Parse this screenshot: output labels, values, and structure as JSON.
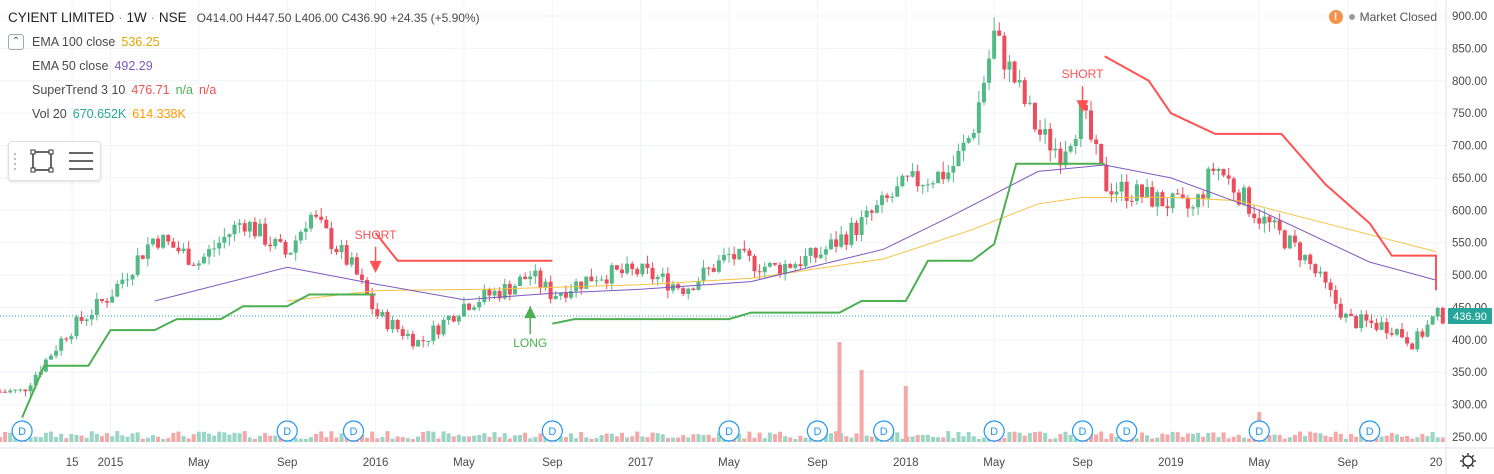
{
  "header": {
    "symbol": "CYIENT LIMITED",
    "sep1": "·",
    "interval": "1W",
    "sep2": "·",
    "exchange": "NSE",
    "ohlc": {
      "o_label": "O",
      "o": "414.00",
      "h_label": "H",
      "h": "447.50",
      "l_label": "L",
      "l": "406.00",
      "c_label": "C",
      "c": "436.90"
    },
    "change": "+24.35 (+5.90%)"
  },
  "indicators": [
    {
      "label": "EMA 100 close",
      "value": "536.25",
      "color": "#f6c342"
    },
    {
      "label": "EMA 50 close",
      "value": "492.29",
      "color": "#7e57c2"
    },
    {
      "label": "SuperTrend 3 10",
      "value": "476.71",
      "value2": "n/a",
      "value3": "n/a",
      "color": "#ef5350",
      "color2": "#4caf50",
      "color3": "#ef5350"
    },
    {
      "label": "Vol 20",
      "value": "670.652K",
      "value2": "614.338K",
      "color": "#26a69a",
      "color2": "#ff9800"
    }
  ],
  "market_status": "Market Closed",
  "icons": {
    "warning": "warning-icon",
    "settings": "gear-icon",
    "rect": "rectangle-tool-icon",
    "menu": "list-menu-icon"
  },
  "colors": {
    "up": "#53b987",
    "down": "#eb4d5c",
    "st_up": "#4caf50",
    "st_down": "#ff5252",
    "ema100": "#f6c342",
    "ema50": "#7e57c2",
    "vol_up": "#9bd6c4",
    "vol_down": "#f4a9a9",
    "grid": "#f0f3fa",
    "last_line": "#26a69a"
  },
  "chart_data": {
    "type": "candlestick",
    "ylim": [
      240,
      910
    ],
    "y_ticks": [
      "900.00",
      "850.00",
      "800.00",
      "750.00",
      "700.00",
      "650.00",
      "600.00",
      "550.00",
      "500.00",
      "450.00",
      "400.00",
      "350.00",
      "300.00",
      "250.00"
    ],
    "x_ticks": [
      "15",
      "2015",
      "May",
      "Sep",
      "2016",
      "May",
      "Sep",
      "2017",
      "May",
      "Sep",
      "2018",
      "May",
      "Sep",
      "2019",
      "May",
      "Sep",
      "20"
    ],
    "last_price_label": "436.90",
    "last_price": 436.9,
    "current_bar_price_label": "450.00",
    "annotations": [
      {
        "text": "SHORT",
        "kind": "short",
        "color": "#ff5252",
        "date": "2016-01",
        "price": 522
      },
      {
        "text": "LONG",
        "kind": "long",
        "color": "#4caf50",
        "date": "2016-08",
        "price": 452
      },
      {
        "text": "SHORT",
        "kind": "short",
        "color": "#ff5252",
        "date": "2018-09",
        "price": 770
      }
    ],
    "dividend_markers": {
      "label": "D",
      "dates": [
        "2014-09",
        "2015-09",
        "2015-12",
        "2016-09",
        "2017-05",
        "2017-09",
        "2017-12",
        "2018-05",
        "2018-09",
        "2018-11",
        "2019-05",
        "2019-10"
      ]
    },
    "price_path": [
      [
        "2014-09",
        320
      ],
      [
        "2014-11",
        410
      ],
      [
        "2015-01",
        470
      ],
      [
        "2015-03",
        560
      ],
      [
        "2015-05",
        520
      ],
      [
        "2015-07",
        585
      ],
      [
        "2015-09",
        530
      ],
      [
        "2015-10",
        595
      ],
      [
        "2015-12",
        510
      ],
      [
        "2016-01",
        440
      ],
      [
        "2016-03",
        395
      ],
      [
        "2016-05",
        455
      ],
      [
        "2016-07",
        480
      ],
      [
        "2016-08",
        500
      ],
      [
        "2016-09",
        470
      ],
      [
        "2016-11",
        500
      ],
      [
        "2017-01",
        505
      ],
      [
        "2017-03",
        480
      ],
      [
        "2017-05",
        530
      ],
      [
        "2017-07",
        510
      ],
      [
        "2017-09",
        530
      ],
      [
        "2017-11",
        580
      ],
      [
        "2018-01",
        640
      ],
      [
        "2018-03",
        660
      ],
      [
        "2018-04",
        720
      ],
      [
        "2018-05",
        870
      ],
      [
        "2018-07",
        720
      ],
      [
        "2018-08",
        690
      ],
      [
        "2018-09",
        750
      ],
      [
        "2018-10",
        640
      ],
      [
        "2018-12",
        620
      ],
      [
        "2019-02",
        600
      ],
      [
        "2019-03",
        670
      ],
      [
        "2019-05",
        590
      ],
      [
        "2019-07",
        530
      ],
      [
        "2019-09",
        430
      ],
      [
        "2019-11",
        420
      ],
      [
        "2019-12",
        395
      ],
      [
        "2020-01",
        436.9
      ]
    ],
    "ema100_path": [
      [
        "2015-09",
        460
      ],
      [
        "2016-01",
        476
      ],
      [
        "2016-06",
        478
      ],
      [
        "2017-01",
        485
      ],
      [
        "2017-06",
        495
      ],
      [
        "2017-12",
        525
      ],
      [
        "2018-04",
        570
      ],
      [
        "2018-07",
        610
      ],
      [
        "2018-09",
        620
      ],
      [
        "2019-01",
        620
      ],
      [
        "2019-04",
        615
      ],
      [
        "2019-08",
        580
      ],
      [
        "2020-01",
        536.25
      ]
    ],
    "ema50_path": [
      [
        "2015-03",
        460
      ],
      [
        "2015-09",
        512
      ],
      [
        "2016-01",
        486
      ],
      [
        "2016-05",
        462
      ],
      [
        "2016-09",
        472
      ],
      [
        "2017-01",
        478
      ],
      [
        "2017-06",
        490
      ],
      [
        "2017-12",
        540
      ],
      [
        "2018-03",
        590
      ],
      [
        "2018-07",
        660
      ],
      [
        "2018-10",
        670
      ],
      [
        "2019-01",
        650
      ],
      [
        "2019-05",
        600
      ],
      [
        "2019-10",
        520
      ],
      [
        "2020-01",
        492.29
      ]
    ],
    "supertrend_up_segments": [
      [
        [
          "2014-09",
          280
        ],
        [
          "2014-10",
          360
        ],
        [
          "2014-12",
          360
        ],
        [
          "2015-01",
          415
        ],
        [
          "2015-03",
          415
        ],
        [
          "2015-04",
          432
        ],
        [
          "2015-06",
          432
        ],
        [
          "2015-07",
          452
        ],
        [
          "2015-09",
          452
        ],
        [
          "2015-10",
          470
        ],
        [
          "2015-12",
          470
        ],
        [
          "2016-01",
          470
        ]
      ],
      [
        [
          "2016-09",
          425
        ],
        [
          "2016-10",
          432
        ],
        [
          "2017-05",
          432
        ],
        [
          "2017-06",
          442
        ],
        [
          "2017-10",
          442
        ],
        [
          "2017-11",
          460
        ],
        [
          "2018-01",
          460
        ],
        [
          "2018-02",
          522
        ],
        [
          "2018-04",
          522
        ],
        [
          "2018-05",
          548
        ],
        [
          "2018-06",
          672
        ],
        [
          "2018-10",
          672
        ]
      ]
    ],
    "supertrend_down_segments": [
      [
        [
          "2016-01",
          565
        ],
        [
          "2016-02",
          522
        ],
        [
          "2016-09",
          522
        ]
      ],
      [
        [
          "2018-10",
          838
        ],
        [
          "2018-12",
          800
        ],
        [
          "2019-01",
          750
        ],
        [
          "2019-03",
          718
        ],
        [
          "2019-06",
          718
        ],
        [
          "2019-08",
          640
        ],
        [
          "2019-10",
          580
        ],
        [
          "2019-11",
          530
        ],
        [
          "2020-01",
          530
        ],
        [
          "2020-01",
          476.71
        ]
      ]
    ],
    "volume_spikes": [
      [
        "2017-10",
        100
      ],
      [
        "2017-11",
        72
      ],
      [
        "2018-01",
        56
      ],
      [
        "2019-05",
        30
      ],
      [
        "2018-05",
        20
      ],
      [
        "2015-12",
        8
      ]
    ]
  }
}
